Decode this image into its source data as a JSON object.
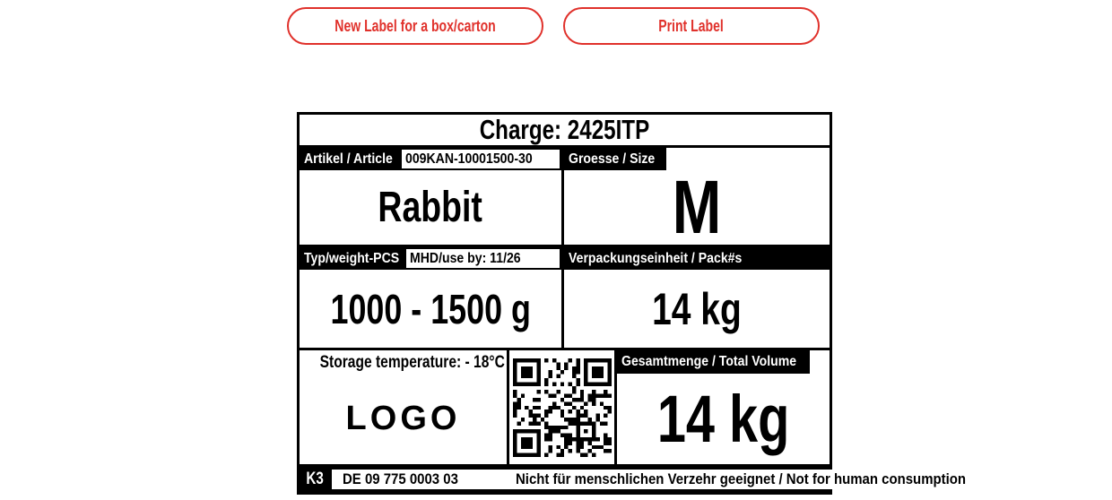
{
  "buttons": {
    "new_label": "New Label for a box/carton",
    "print_label": "Print Label"
  },
  "colors": {
    "accent_red": "#e0312b",
    "label_ink": "#000000",
    "label_bg": "#ffffff"
  },
  "label": {
    "charge": "Charge: 2425ITP",
    "article_tag": "Artikel / Article",
    "article_code": "009KAN-10001500-30",
    "article_value": "Rabbit",
    "size_tag": "Groesse / Size",
    "size_value": "M",
    "typ_tag": "Typ/weight-PCS",
    "mhd": "MHD/use by: 11/26",
    "weight_value": "1000 - 1500 g",
    "pack_tag": "Verpackungseinheit / Pack#s",
    "pack_value": "14 kg",
    "storage_temp": "Storage temperature: - 18°C",
    "logo": "LOGO",
    "total_tag": "Gesamtmenge / Total Volume",
    "total_value": "14 kg",
    "footer_k": "K3",
    "footer_reg": "DE 09 775 0003 03",
    "footer_warning": "Nicht für menschlichen Verzehr geeignet / Not for human consumption"
  },
  "qr": {
    "modules": 25,
    "seed": 9,
    "icon": "qr-code"
  }
}
